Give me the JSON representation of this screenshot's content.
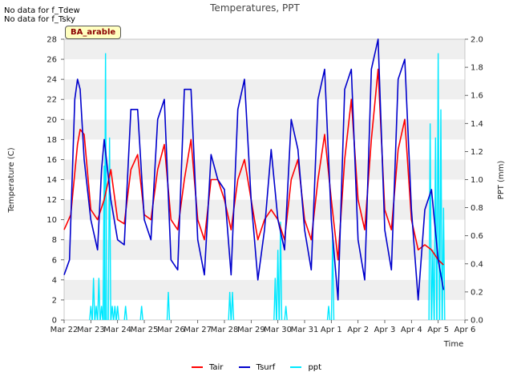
{
  "notes": [
    "No data for f_Tdew",
    "No data for f_Tsky"
  ],
  "badge": "BA_arable",
  "chart_data": {
    "type": "line",
    "title": "Temperatures, PPT",
    "xlabel": "Time",
    "ylabel": "Temperature (C)",
    "y2label": "PPT (mm)",
    "x_ticks": [
      "Mar 22",
      "Mar 23",
      "Mar 24",
      "Mar 25",
      "Mar 26",
      "Mar 27",
      "Mar 28",
      "Mar 29",
      "Mar 30",
      "Mar 31",
      "Apr 1",
      "Apr 2",
      "Apr 3",
      "Apr 4",
      "Apr 5",
      "Apr 6"
    ],
    "xlim": [
      0,
      15
    ],
    "ylim": [
      0,
      28
    ],
    "y_ticks": [
      0,
      2,
      4,
      6,
      8,
      10,
      12,
      14,
      16,
      18,
      20,
      22,
      24,
      26,
      28
    ],
    "y2lim": [
      0,
      2.0
    ],
    "y2_ticks": [
      "0.0",
      "0.2",
      "0.4",
      "0.6",
      "0.8",
      "1.0",
      "1.2",
      "1.4",
      "1.6",
      "1.8",
      "2.0"
    ],
    "grid": "horizontal bands",
    "legend_position": "bottom-center",
    "x_unit": "days since Mar 22",
    "series": [
      {
        "name": "Tair",
        "axis": "left",
        "color": "#ff0000",
        "x": [
          0.0,
          0.25,
          0.5,
          0.6,
          0.75,
          1.0,
          1.25,
          1.5,
          1.75,
          2.0,
          2.25,
          2.5,
          2.75,
          3.0,
          3.25,
          3.5,
          3.75,
          4.0,
          4.25,
          4.5,
          4.75,
          5.0,
          5.25,
          5.5,
          5.75,
          6.0,
          6.25,
          6.5,
          6.75,
          7.0,
          7.25,
          7.5,
          7.75,
          8.0,
          8.25,
          8.5,
          8.75,
          9.0,
          9.25,
          9.5,
          9.75,
          10.0,
          10.25,
          10.5,
          10.75,
          11.0,
          11.25,
          11.5,
          11.75,
          12.0,
          12.25,
          12.5,
          12.75,
          13.0,
          13.25,
          13.5,
          13.75,
          14.0,
          14.2
        ],
        "y": [
          9.0,
          10.5,
          17.5,
          19.0,
          18.5,
          11.0,
          10.0,
          12.0,
          15.0,
          10.0,
          9.6,
          15.0,
          16.5,
          10.5,
          10.0,
          15.0,
          17.5,
          10.0,
          9.0,
          14.0,
          18.0,
          10.0,
          8.0,
          14.0,
          14.0,
          12.0,
          9.0,
          14.0,
          16.0,
          12.0,
          8.0,
          10.0,
          11.0,
          10.0,
          8.0,
          14.0,
          16.0,
          10.0,
          8.0,
          14.0,
          18.5,
          12.0,
          6.0,
          16.0,
          22.0,
          12.0,
          9.0,
          18.0,
          25.0,
          11.0,
          9.0,
          17.0,
          20.0,
          10.0,
          7.0,
          7.5,
          7.0,
          6.0,
          5.5
        ]
      },
      {
        "name": "Tsurf",
        "axis": "left",
        "color": "#0000cc",
        "x": [
          0.0,
          0.2,
          0.4,
          0.5,
          0.6,
          0.75,
          1.0,
          1.25,
          1.4,
          1.5,
          1.75,
          2.0,
          2.25,
          2.5,
          2.75,
          3.0,
          3.25,
          3.5,
          3.75,
          4.0,
          4.25,
          4.5,
          4.75,
          5.0,
          5.25,
          5.5,
          5.75,
          6.0,
          6.25,
          6.5,
          6.75,
          7.0,
          7.25,
          7.5,
          7.75,
          8.0,
          8.25,
          8.5,
          8.75,
          9.0,
          9.25,
          9.5,
          9.75,
          10.0,
          10.25,
          10.5,
          10.75,
          11.0,
          11.25,
          11.5,
          11.75,
          12.0,
          12.25,
          12.5,
          12.75,
          13.0,
          13.25,
          13.5,
          13.75,
          14.0,
          14.2
        ],
        "y": [
          4.5,
          6.0,
          22.0,
          24.0,
          23.0,
          16.0,
          10.0,
          7.0,
          15.0,
          18.0,
          12.0,
          8.0,
          7.5,
          21.0,
          21.0,
          10.0,
          8.0,
          20.0,
          22.0,
          6.0,
          5.0,
          23.0,
          23.0,
          8.0,
          4.5,
          16.5,
          14.0,
          13.0,
          4.5,
          21.0,
          24.0,
          12.0,
          4.0,
          9.0,
          17.0,
          10.0,
          7.0,
          20.0,
          17.0,
          9.0,
          5.0,
          22.0,
          25.0,
          10.0,
          2.0,
          23.0,
          25.0,
          8.0,
          4.0,
          25.0,
          28.0,
          9.0,
          5.0,
          24.0,
          26.0,
          11.0,
          2.0,
          11.0,
          13.0,
          6.0,
          3.0
        ]
      },
      {
        "name": "ppt",
        "axis": "right",
        "color": "#00e8ff",
        "x": [
          1.0,
          1.1,
          1.2,
          1.3,
          1.4,
          1.5,
          1.55,
          1.7,
          1.8,
          1.9,
          2.0,
          2.3,
          2.9,
          3.9,
          6.2,
          6.3,
          7.9,
          8.0,
          8.1,
          8.3,
          9.9,
          10.05,
          13.7,
          13.8,
          13.9,
          14.0,
          14.1,
          14.2
        ],
        "y": [
          0.1,
          0.3,
          0.1,
          0.3,
          0.1,
          1.1,
          1.9,
          1.3,
          0.1,
          0.1,
          0.1,
          0.1,
          0.1,
          0.2,
          0.2,
          0.2,
          0.3,
          0.5,
          0.7,
          0.1,
          0.1,
          0.6,
          1.4,
          0.5,
          1.3,
          1.9,
          1.5,
          0.8
        ]
      }
    ]
  }
}
